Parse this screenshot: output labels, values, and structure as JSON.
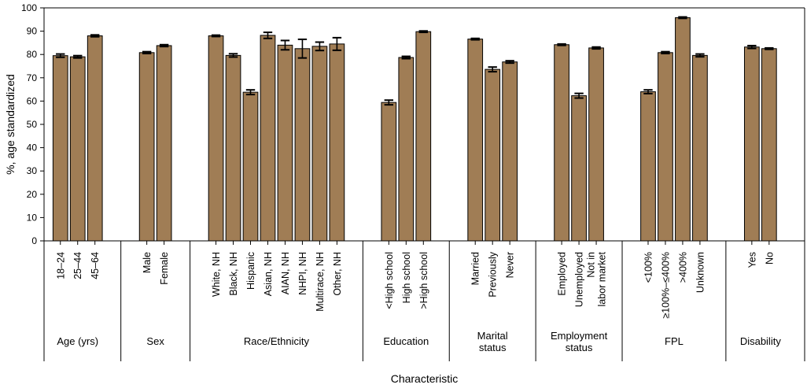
{
  "chart_data": {
    "type": "bar",
    "title": "",
    "xlabel": "Characteristic",
    "ylabel": "%, age standardized",
    "ylim": [
      0,
      100
    ],
    "yticks": [
      0,
      10,
      20,
      30,
      40,
      50,
      60,
      70,
      80,
      90,
      100
    ],
    "bar_color": "#a07d55",
    "bar_edge_color": "#000000",
    "error_color": "#000000",
    "groups": [
      {
        "name": "Age (yrs)",
        "bars": [
          {
            "label": "18–24",
            "value": 79.5,
            "err": 0.7
          },
          {
            "label": "25–44",
            "value": 79.0,
            "err": 0.5
          },
          {
            "label": "45–64",
            "value": 88.0,
            "err": 0.4
          }
        ]
      },
      {
        "name": "Sex",
        "bars": [
          {
            "label": "Male",
            "value": 80.8,
            "err": 0.4
          },
          {
            "label": "Female",
            "value": 83.8,
            "err": 0.4
          }
        ]
      },
      {
        "name": "Race/Ethnicity",
        "bars": [
          {
            "label": "White, NH",
            "value": 88.0,
            "err": 0.3
          },
          {
            "label": "Black, NH",
            "value": 79.6,
            "err": 0.7
          },
          {
            "label": "Hispanic",
            "value": 63.8,
            "err": 1.0
          },
          {
            "label": "Asian, NH",
            "value": 88.2,
            "err": 1.3
          },
          {
            "label": "AIAN, NH",
            "value": 84.0,
            "err": 2.0
          },
          {
            "label": "NHPI, NH",
            "value": 82.5,
            "err": 4.0
          },
          {
            "label": "Multirace, NH",
            "value": 83.5,
            "err": 1.8
          },
          {
            "label": "Other, NH",
            "value": 84.5,
            "err": 2.7
          }
        ]
      },
      {
        "name": "Education",
        "bars": [
          {
            "label": "<High school",
            "value": 59.4,
            "err": 1.0
          },
          {
            "label": "High school",
            "value": 78.7,
            "err": 0.5
          },
          {
            "label": ">High school",
            "value": 89.8,
            "err": 0.3
          }
        ]
      },
      {
        "name": "Marital status",
        "label_lines": [
          "Marital",
          "status"
        ],
        "bars": [
          {
            "label": "Married",
            "value": 86.6,
            "err": 0.3
          },
          {
            "label": "Previously",
            "value": 73.6,
            "err": 1.0
          },
          {
            "label": "Never",
            "value": 76.8,
            "err": 0.5
          }
        ]
      },
      {
        "name": "Employment status",
        "label_lines": [
          "Employment",
          "status"
        ],
        "bars": [
          {
            "label": "Employed",
            "value": 84.2,
            "err": 0.3
          },
          {
            "label": "Unemployed",
            "value": 62.3,
            "err": 1.0
          },
          {
            "label": "Not in labor market",
            "label_lines": [
              "Not in",
              "labor market"
            ],
            "value": 82.8,
            "err": 0.4
          }
        ]
      },
      {
        "name": "FPL",
        "bars": [
          {
            "label": "<100%",
            "value": 64.0,
            "err": 0.8
          },
          {
            "label": "≥100%–≤400%",
            "value": 80.8,
            "err": 0.4
          },
          {
            "label": ">400%",
            "value": 95.8,
            "err": 0.3
          },
          {
            "label": "Unknown",
            "value": 79.6,
            "err": 0.6
          }
        ]
      },
      {
        "name": "Disability",
        "bars": [
          {
            "label": "Yes",
            "value": 83.2,
            "err": 0.6
          },
          {
            "label": "No",
            "value": 82.5,
            "err": 0.3
          }
        ]
      }
    ]
  }
}
